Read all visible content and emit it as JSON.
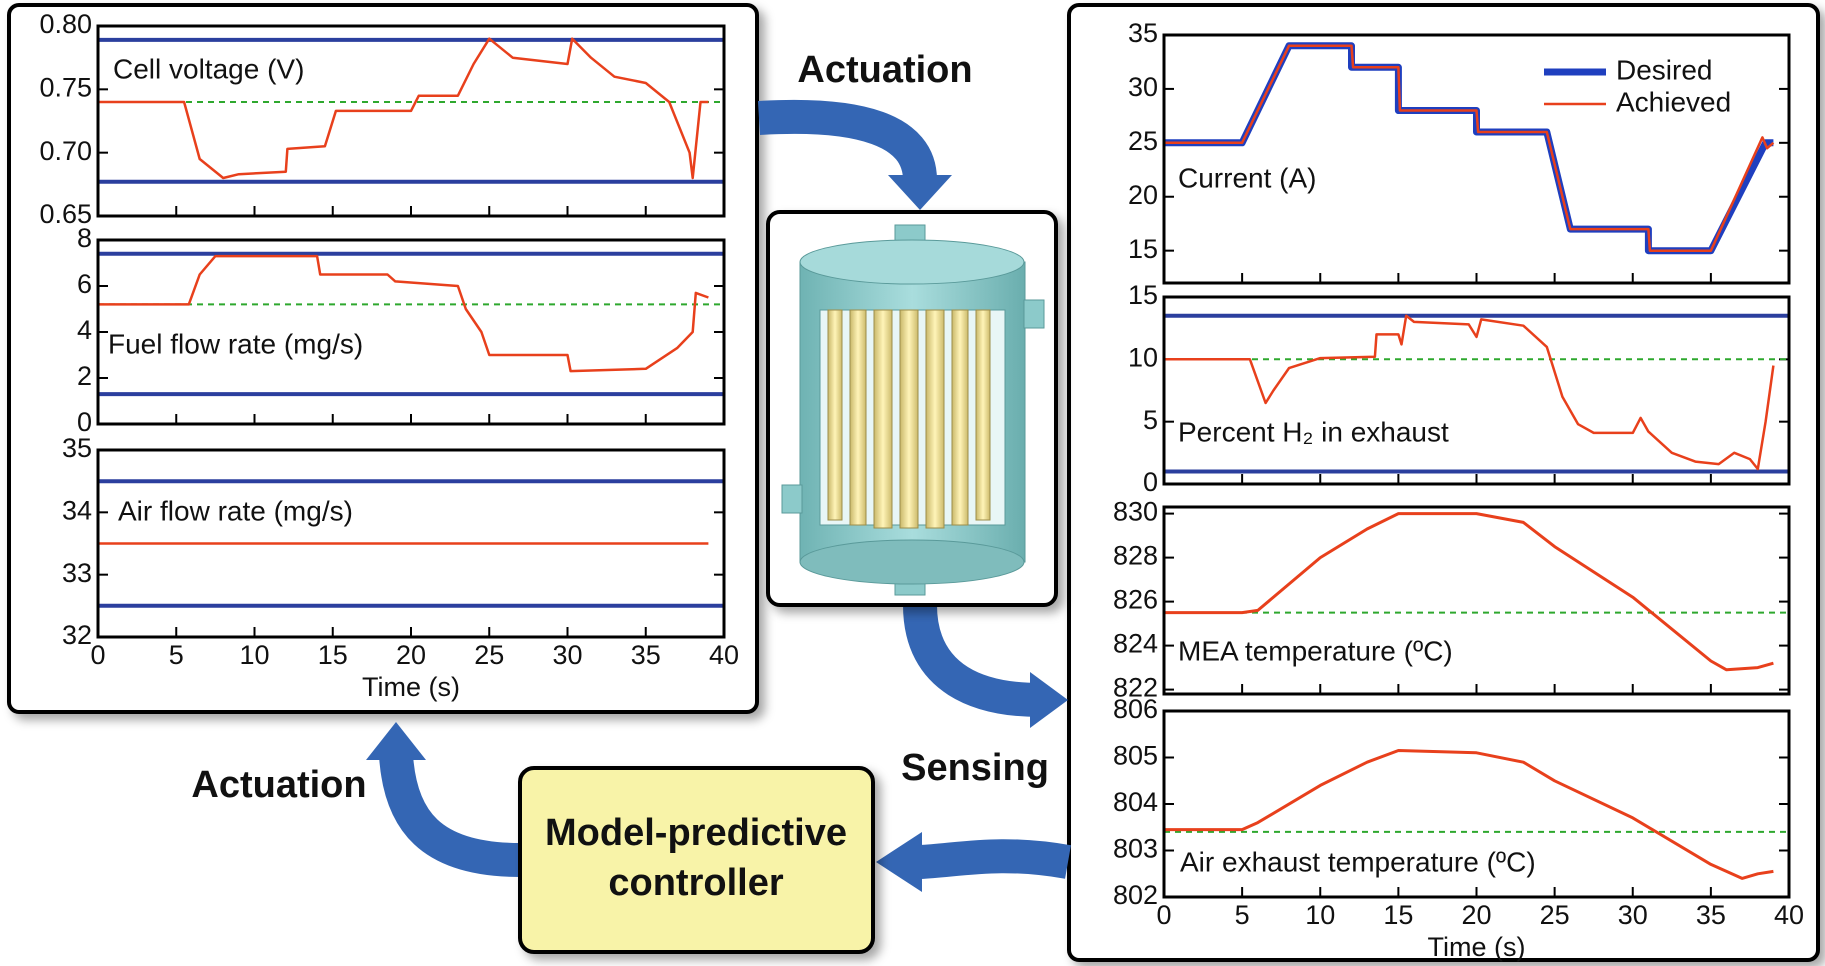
{
  "chart_data": [
    {
      "type": "line",
      "annotation": "Cell voltage (V)",
      "xlim": [
        0,
        40
      ],
      "xticks": [
        0,
        5,
        10,
        15,
        20,
        25,
        30,
        35,
        40
      ],
      "ylim": [
        0.65,
        0.8
      ],
      "yticks": [
        0.65,
        {
          "value": 0.7,
          "label": "0.70"
        },
        0.75,
        {
          "value": 0.8,
          "label": "0.80"
        }
      ],
      "series": [
        {
          "color": "#2b3f9e",
          "width": 4,
          "x": [
            0,
            40
          ],
          "values": [
            0.789,
            0.789
          ]
        },
        {
          "color": "#2b3f9e",
          "width": 4,
          "x": [
            0,
            40
          ],
          "values": [
            0.677,
            0.677
          ]
        },
        {
          "color": "#2ea82e",
          "width": 2,
          "dash": true,
          "x": [
            0,
            40
          ],
          "values": [
            0.74,
            0.74
          ]
        },
        {
          "color": "#e8401c",
          "width": 2.5,
          "x": [
            0,
            5.5,
            6.5,
            8,
            9,
            12,
            12.1,
            14.5,
            15.2,
            20,
            20.5,
            23,
            24,
            25,
            26.5,
            30,
            30.3,
            31.5,
            33,
            35,
            36.5,
            37.8,
            38,
            38.5,
            39
          ],
          "values": [
            0.74,
            0.74,
            0.695,
            0.68,
            0.683,
            0.685,
            0.703,
            0.705,
            0.733,
            0.733,
            0.745,
            0.745,
            0.77,
            0.79,
            0.775,
            0.77,
            0.79,
            0.775,
            0.76,
            0.755,
            0.74,
            0.7,
            0.68,
            0.74,
            0.74
          ]
        }
      ]
    },
    {
      "type": "line",
      "annotation": "Fuel flow rate (mg/s)",
      "xlim": [
        0,
        40
      ],
      "xticks": [
        0,
        5,
        10,
        15,
        20,
        25,
        30,
        35,
        40
      ],
      "ylim": [
        0,
        8
      ],
      "yticks": [
        0,
        2,
        4,
        6,
        8
      ],
      "series": [
        {
          "color": "#2b3f9e",
          "width": 4,
          "x": [
            0,
            40
          ],
          "values": [
            7.4,
            7.4
          ]
        },
        {
          "color": "#2b3f9e",
          "width": 4,
          "x": [
            0,
            40
          ],
          "values": [
            1.3,
            1.3
          ]
        },
        {
          "color": "#2ea82e",
          "width": 2,
          "dash": true,
          "x": [
            0,
            40
          ],
          "values": [
            5.2,
            5.2
          ]
        },
        {
          "color": "#e8401c",
          "width": 2.5,
          "x": [
            0,
            5.8,
            6.5,
            7.5,
            14,
            14.2,
            18.5,
            19,
            23,
            23.5,
            24.5,
            25,
            30,
            30.2,
            35,
            37,
            38,
            38.2,
            39
          ],
          "values": [
            5.2,
            5.2,
            6.5,
            7.3,
            7.3,
            6.5,
            6.5,
            6.2,
            6.0,
            5.0,
            4.0,
            3.0,
            3.0,
            2.3,
            2.4,
            3.3,
            4.0,
            5.7,
            5.5
          ]
        }
      ]
    },
    {
      "type": "line",
      "annotation": "Air flow rate (mg/s)",
      "xlabel": "Time (s)",
      "xlim": [
        0,
        40
      ],
      "xticks": [
        0,
        5,
        10,
        15,
        20,
        25,
        30,
        35,
        40
      ],
      "ylim": [
        32,
        35
      ],
      "yticks": [
        32,
        33,
        34,
        35
      ],
      "series": [
        {
          "color": "#2b3f9e",
          "width": 4,
          "x": [
            0,
            40
          ],
          "values": [
            34.5,
            34.5
          ]
        },
        {
          "color": "#2b3f9e",
          "width": 4,
          "x": [
            0,
            40
          ],
          "values": [
            32.5,
            32.5
          ]
        },
        {
          "color": "#e8401c",
          "width": 2.5,
          "x": [
            0,
            39
          ],
          "values": [
            33.5,
            33.5
          ]
        }
      ]
    },
    {
      "type": "line",
      "annotation": "Current (A)",
      "legend": "upper right",
      "xlim": [
        0,
        40
      ],
      "xticks": [
        0,
        5,
        10,
        15,
        20,
        25,
        30,
        35,
        40
      ],
      "ylim": [
        12,
        35
      ],
      "yticks": [
        15,
        20,
        25,
        30,
        35
      ],
      "series": [
        {
          "name": "Desired",
          "color": "#1f3fbf",
          "width": 7,
          "x": [
            0,
            5,
            8,
            12,
            12,
            15,
            15,
            20,
            20,
            24.5,
            26,
            31,
            31,
            35,
            38.5,
            39
          ],
          "values": [
            25,
            25,
            34,
            34,
            32,
            32,
            28,
            28,
            26,
            26,
            17,
            17,
            15,
            15,
            25,
            25
          ]
        },
        {
          "name": "Achieved",
          "color": "#e8401c",
          "width": 2.5,
          "x": [
            0,
            5,
            8,
            12,
            12.1,
            15,
            15.1,
            20,
            20.1,
            24.5,
            26,
            31,
            31.1,
            35,
            38.3,
            38.6,
            39
          ],
          "values": [
            25,
            25,
            34,
            34,
            32,
            32,
            28,
            28,
            26,
            26,
            17,
            17,
            15,
            15,
            25.5,
            24.5,
            25
          ]
        }
      ]
    },
    {
      "type": "line",
      "annotation": "Percent H₂ in exhaust",
      "xlim": [
        0,
        40
      ],
      "xticks": [
        0,
        5,
        10,
        15,
        20,
        25,
        30,
        35,
        40
      ],
      "ylim": [
        0,
        15
      ],
      "yticks": [
        0,
        5,
        10,
        15
      ],
      "series": [
        {
          "color": "#2b3f9e",
          "width": 4,
          "x": [
            0,
            40
          ],
          "values": [
            13.5,
            13.5
          ]
        },
        {
          "color": "#2b3f9e",
          "width": 4,
          "x": [
            0,
            40
          ],
          "values": [
            1.0,
            1.0
          ]
        },
        {
          "color": "#2ea82e",
          "width": 2,
          "dash": true,
          "x": [
            0,
            40
          ],
          "values": [
            10,
            10
          ]
        },
        {
          "color": "#e8401c",
          "width": 2.5,
          "x": [
            0,
            5.5,
            6.5,
            7,
            8,
            10,
            13.5,
            13.6,
            15,
            15.2,
            15.5,
            16,
            19.5,
            20,
            20.3,
            23,
            24.5,
            25.5,
            26.5,
            27.5,
            30,
            30.5,
            31,
            32.5,
            34,
            35.5,
            36.5,
            37.5,
            38,
            38.5,
            39
          ],
          "values": [
            10,
            10,
            6.5,
            7.5,
            9.3,
            10.1,
            10.2,
            12,
            12,
            11.2,
            13.5,
            13,
            12.8,
            11.8,
            13.2,
            12.7,
            11,
            7,
            4.8,
            4.1,
            4.1,
            5.3,
            4.2,
            2.5,
            1.8,
            1.6,
            2.5,
            2.0,
            1.2,
            5,
            9.5
          ]
        }
      ]
    },
    {
      "type": "line",
      "annotation": "MEA temperature (ºC)",
      "xlim": [
        0,
        40
      ],
      "xticks": [
        0,
        5,
        10,
        15,
        20,
        25,
        30,
        35,
        40
      ],
      "ylim": [
        821.8,
        830.3
      ],
      "yticks": [
        822,
        824,
        826,
        828,
        830
      ],
      "series": [
        {
          "color": "#2ea82e",
          "width": 2,
          "dash": true,
          "x": [
            0,
            40
          ],
          "values": [
            825.5,
            825.5
          ]
        },
        {
          "color": "#e8401c",
          "width": 3,
          "x": [
            0,
            5,
            6,
            10,
            13,
            15,
            20,
            23,
            25,
            30,
            35,
            36,
            38,
            39
          ],
          "values": [
            825.5,
            825.5,
            825.6,
            828,
            829.3,
            830,
            830,
            829.6,
            828.5,
            826.2,
            823.3,
            822.9,
            823,
            823.2
          ]
        }
      ]
    },
    {
      "type": "line",
      "annotation": "Air exhaust temperature (ºC)",
      "xlabel": "Time (s)",
      "xlim": [
        0,
        40
      ],
      "xticks": [
        0,
        5,
        10,
        15,
        20,
        25,
        30,
        35,
        40
      ],
      "ylim": [
        802,
        806
      ],
      "yticks": [
        802,
        803,
        804,
        805,
        806
      ],
      "series": [
        {
          "color": "#2ea82e",
          "width": 2,
          "dash": true,
          "x": [
            0,
            40
          ],
          "values": [
            803.4,
            803.4
          ]
        },
        {
          "color": "#e8401c",
          "width": 3,
          "x": [
            0,
            5,
            6,
            10,
            13,
            15,
            20,
            23,
            25,
            30,
            35,
            37,
            38,
            39
          ],
          "values": [
            803.45,
            803.45,
            803.6,
            804.4,
            804.9,
            805.15,
            805.1,
            804.9,
            804.5,
            803.7,
            802.7,
            802.4,
            802.5,
            802.55
          ]
        }
      ]
    }
  ],
  "diagram": {
    "actuation_top": "Actuation",
    "actuation_left": "Actuation",
    "sensing": "Sensing",
    "controller": [
      "Model-predictive",
      "controller"
    ]
  }
}
